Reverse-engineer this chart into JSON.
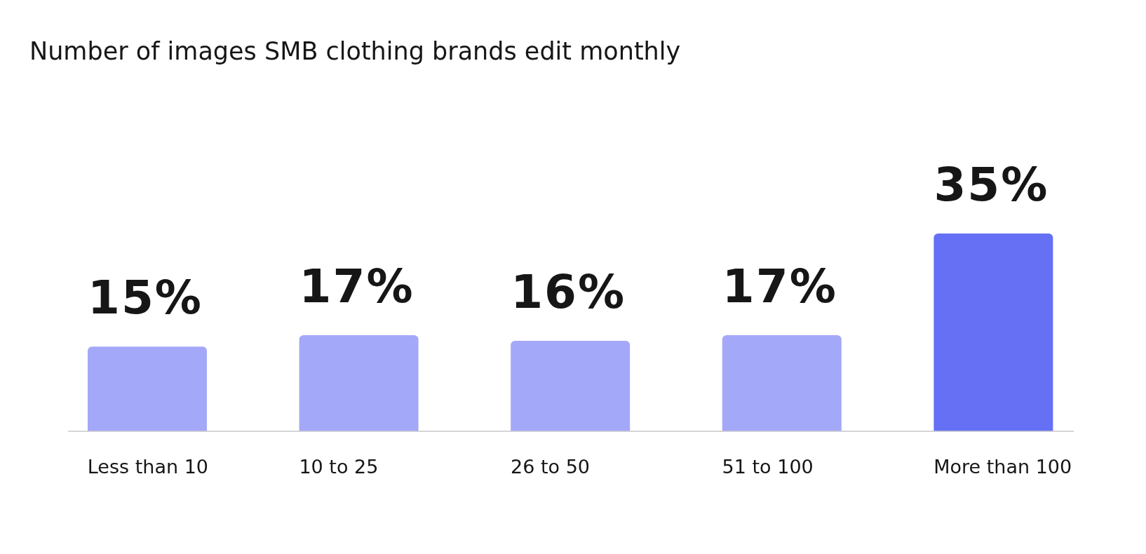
{
  "chart_data": {
    "type": "bar",
    "title": "Number of images SMB clothing brands edit monthly",
    "categories": [
      "Less than 10",
      "10 to 25",
      "26 to 50",
      "51 to 100",
      "More than 100"
    ],
    "values": [
      15,
      17,
      16,
      17,
      35
    ],
    "colors": [
      "#a4a8f8",
      "#a4a8f8",
      "#a4a8f8",
      "#a4a8f8",
      "#6570f5"
    ],
    "value_labels": [
      "15%",
      "17%",
      "16%",
      "17%",
      "35%"
    ]
  }
}
